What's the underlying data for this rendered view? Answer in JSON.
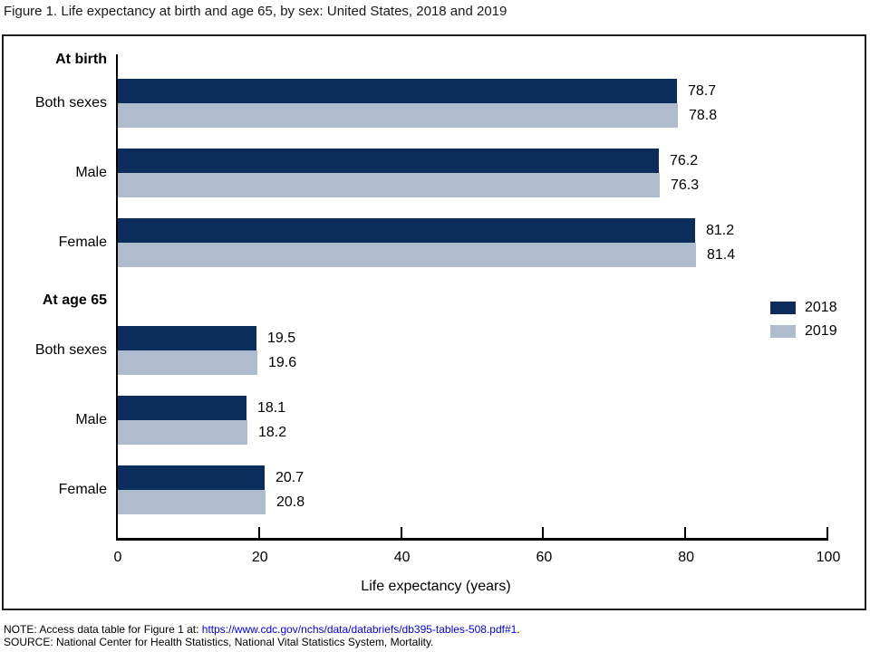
{
  "title": "Figure 1. Life expectancy at birth and age 65, by sex: United States, 2018 and 2019",
  "chart_data": {
    "type": "bar",
    "orientation": "horizontal",
    "title": "Figure 1. Life expectancy at birth and age 65, by sex: United States, 2018 and 2019",
    "xlabel": "Life expectancy (years)",
    "xlim": [
      0,
      100
    ],
    "xticks": [
      0,
      20,
      40,
      60,
      80,
      100
    ],
    "grid": false,
    "value_labels_shown": true,
    "legend_position": "middle-right",
    "categories": [
      "Both sexes",
      "Male",
      "Female",
      "Both sexes",
      "Male",
      "Female"
    ],
    "groups": [
      {
        "label": "At birth",
        "start_index": 0,
        "count": 3
      },
      {
        "label": "At age 65",
        "start_index": 3,
        "count": 3
      }
    ],
    "series": [
      {
        "name": "2018",
        "color": "#0b2d5c",
        "values": [
          78.7,
          76.2,
          81.2,
          19.5,
          18.1,
          20.7
        ]
      },
      {
        "name": "2019",
        "color": "#aebcce",
        "values": [
          78.8,
          76.3,
          81.4,
          19.6,
          18.2,
          20.8
        ]
      }
    ]
  },
  "notes": {
    "note_prefix": "NOTE: Access data table for Figure 1 at: ",
    "note_link": "https://www.cdc.gov/nchs/data/databriefs/db395-tables-508.pdf#1",
    "note_suffix": ".",
    "source": "SOURCE: National Center for Health Statistics, National Vital Statistics System, Mortality."
  },
  "colors": {
    "series_2018": "#0b2d5c",
    "series_2019": "#aebcce",
    "axis": "#000000",
    "link_blue": "#0000ee"
  }
}
